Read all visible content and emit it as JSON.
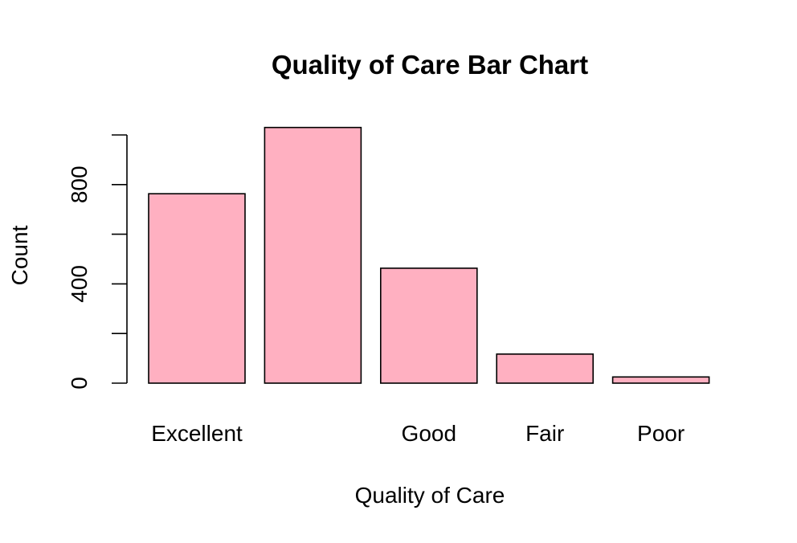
{
  "chart_data": {
    "type": "bar",
    "title": "Quality of Care Bar Chart",
    "xlabel": "Quality of Care",
    "ylabel": "Count",
    "categories": [
      "Excellent",
      "",
      "Good",
      "Fair",
      "Poor"
    ],
    "values": [
      763,
      1030,
      463,
      117,
      25
    ],
    "ylim": [
      0,
      1000
    ],
    "ytick_values": [
      0,
      200,
      400,
      600,
      800,
      1000
    ],
    "ytick_labels": [
      "0",
      "",
      "400",
      "",
      "800",
      ""
    ],
    "bar_color": "#FFB0C1",
    "grid": false,
    "legend": "none"
  }
}
